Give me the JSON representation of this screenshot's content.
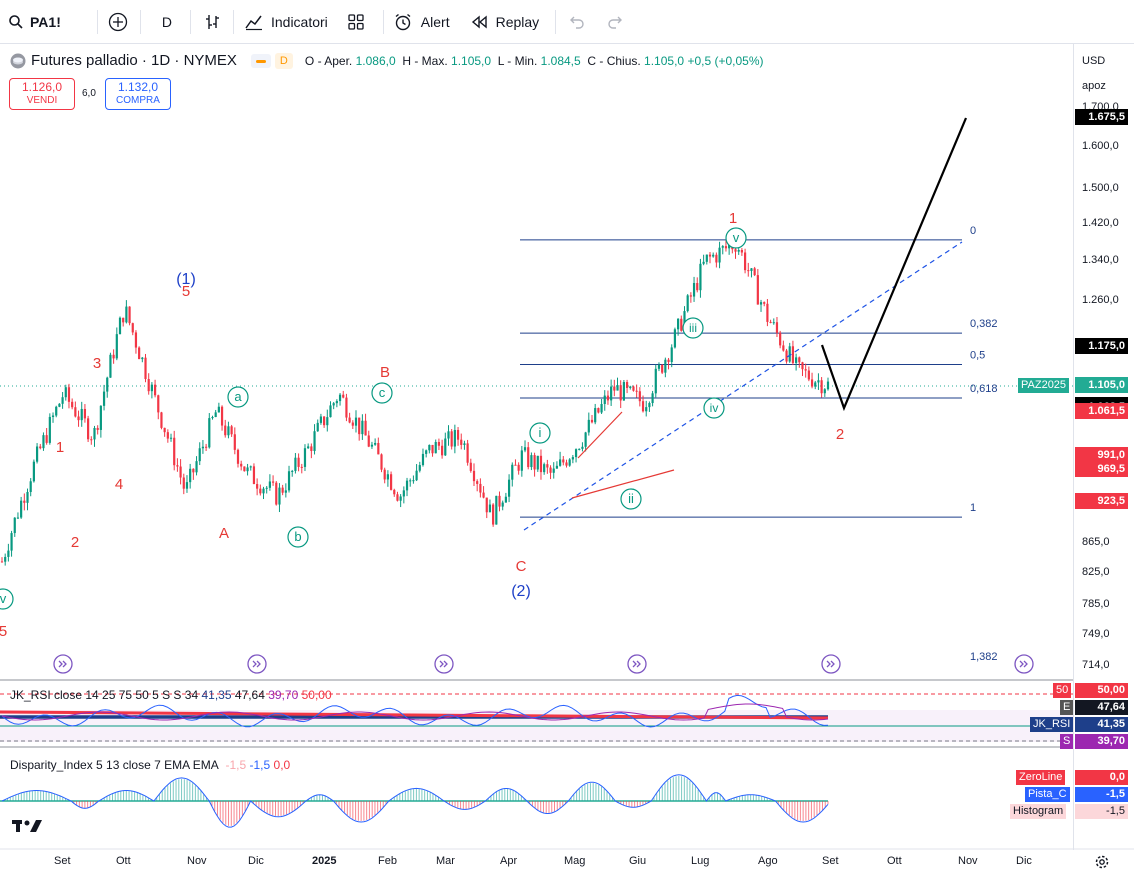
{
  "toolbar": {
    "symbol": "PA1!",
    "interval": "D",
    "indicators_label": "Indicatori",
    "alert_label": "Alert",
    "replay_label": "Replay"
  },
  "legend": {
    "name": "Futures palladio · 1D · NYMEX",
    "badge": "D",
    "o_label": "O - Aper.",
    "o_val": "1.086,0",
    "h_label": "H - Max.",
    "h_val": "1.105,0",
    "l_label": "L - Min.",
    "l_val": "1.084,5",
    "c_label": "C - Chius.",
    "c_val": "1.105,0",
    "change": "+0,5 (+0,05%)"
  },
  "trade": {
    "sell_price": "1.126,0",
    "sell_label": "VENDI",
    "spread": "6,0",
    "buy_price": "1.132,0",
    "buy_label": "COMPRA"
  },
  "price_axis": {
    "currency": "USD",
    "mode": "apoz",
    "ticks": [
      "1.700,0",
      "1.600,0",
      "1.500,0",
      "1.420,0",
      "1.340,0",
      "1.260,0",
      "865,0",
      "825,0",
      "785,0",
      "749,0",
      "714,0"
    ]
  },
  "price_tags": [
    {
      "label": "1.675,5",
      "bg": "#000000",
      "fg": "#ffffff"
    },
    {
      "label": "1.175,0",
      "bg": "#000000",
      "fg": "#ffffff"
    },
    {
      "label": "1.105,0",
      "bg": "#22ab94",
      "fg": "#ffffff"
    },
    {
      "label": "1.072,0",
      "bg": "#000000",
      "fg": "#ffffff"
    },
    {
      "label": "1.068,5",
      "bg": "#000000",
      "fg": "#ffffff"
    },
    {
      "label": "1.061,5",
      "bg": "#f23645",
      "fg": "#ffffff"
    },
    {
      "label": "991,0",
      "bg": "#f23645",
      "fg": "#ffffff"
    },
    {
      "label": "969,5",
      "bg": "#f23645",
      "fg": "#ffffff"
    },
    {
      "label": "923,5",
      "bg": "#f23645",
      "fg": "#ffffff"
    }
  ],
  "symbol_tag": "PAZ2025",
  "colors": {
    "up": "#089981",
    "down": "#f23645",
    "fib": "#1e3f8a",
    "wave_red": "#e53935",
    "wave_blue": "#1e40c8",
    "wave_teal": "#089981"
  },
  "chart_data": {
    "type": "candlestick",
    "title": "Futures palladio · 1D · NYMEX",
    "x_labels": [
      "Set",
      "Ott",
      "Nov",
      "Dic",
      "2025",
      "Feb",
      "Mar",
      "Apr",
      "Mag",
      "Giu",
      "Lug",
      "Ago",
      "Set",
      "Ott",
      "Nov",
      "Dic"
    ],
    "approx_close_path": [
      {
        "t": "Ago 2024",
        "v": 840
      },
      {
        "t": "Set 2024",
        "v": 970
      },
      {
        "t": "Set 2024",
        "v": 1090
      },
      {
        "t": "Ott 2024",
        "v": 1020
      },
      {
        "t": "Ott 2024",
        "v": 1245
      },
      {
        "t": "Nov 2024",
        "v": 1080
      },
      {
        "t": "Nov 2024",
        "v": 935
      },
      {
        "t": "Nov 2024",
        "v": 1060
      },
      {
        "t": "Dic 2024",
        "v": 965
      },
      {
        "t": "2025",
        "v": 930
      },
      {
        "t": "Gen 2025",
        "v": 1000
      },
      {
        "t": "Feb 2025",
        "v": 1090
      },
      {
        "t": "Feb 2025",
        "v": 1010
      },
      {
        "t": "Mar 2025",
        "v": 930
      },
      {
        "t": "Mar 2025",
        "v": 1000
      },
      {
        "t": "Apr 2025",
        "v": 1020
      },
      {
        "t": "Apr 2025",
        "v": 900
      },
      {
        "t": "Apr 2025",
        "v": 990
      },
      {
        "t": "Mag 2025",
        "v": 960
      },
      {
        "t": "Mag 2025",
        "v": 1020
      },
      {
        "t": "Giu 2025",
        "v": 1100
      },
      {
        "t": "Giu 2025",
        "v": 1075
      },
      {
        "t": "Lug 2025",
        "v": 1190
      },
      {
        "t": "Lug 2025",
        "v": 1340
      },
      {
        "t": "Lug 2025",
        "v": 1380
      },
      {
        "t": "Ago 2025",
        "v": 1230
      },
      {
        "t": "Ago 2025",
        "v": 1130
      },
      {
        "t": "Set 2025",
        "v": 1105
      }
    ],
    "fibonacci": [
      {
        "level": "0",
        "price": 1385
      },
      {
        "level": "0,382",
        "price": 1198
      },
      {
        "level": "0,5",
        "price": 1141
      },
      {
        "level": "0,618",
        "price": 1083
      },
      {
        "level": "1",
        "price": 900
      },
      {
        "level": "1,382",
        "price": 714
      }
    ],
    "projection": [
      {
        "v": 1175
      },
      {
        "v": 1072
      },
      {
        "v": 1675.5
      }
    ],
    "wave_labels": [
      "(1)",
      "5",
      "3",
      "1",
      "4",
      "2",
      "A",
      "B",
      "C",
      "(2)",
      "a",
      "b",
      "c",
      "1",
      "2",
      "i",
      "ii",
      "iii",
      "iv",
      "v"
    ],
    "indicators": [
      {
        "name": "JK_RSI close 14 25 75 50 5 S S 34",
        "values": [
          "41,35",
          "47,64",
          "39,70",
          "50,00"
        ]
      },
      {
        "name": "Disparity_Index 5 13 close 7 EMA EMA",
        "values": [
          "-1,5",
          "-1,5",
          "0,0"
        ]
      }
    ]
  },
  "rsi": {
    "title": "JK_RSI close 14 25 75 50 5 S S 34",
    "v1": "41,35",
    "v2": "47,64",
    "v3": "39,70",
    "v4": "50,00",
    "tag50": "50",
    "tag50_val": "50,00",
    "tagE": "E",
    "tagE_val": "47,64",
    "tagRSI": "JK_RSI",
    "tagRSI_val": "41,35",
    "tagS": "S",
    "tagS_val": "39,70"
  },
  "disparity": {
    "title": "Disparity_Index 5 13 close 7 EMA EMA",
    "v1": "-1,5",
    "v2": "-1,5",
    "v3": "0,0",
    "zero_label": "ZeroLine",
    "zero_val": "0,0",
    "pista_label": "Pista_C",
    "pista_val": "-1,5",
    "hist_label": "Histogram",
    "hist_val": "-1,5"
  }
}
